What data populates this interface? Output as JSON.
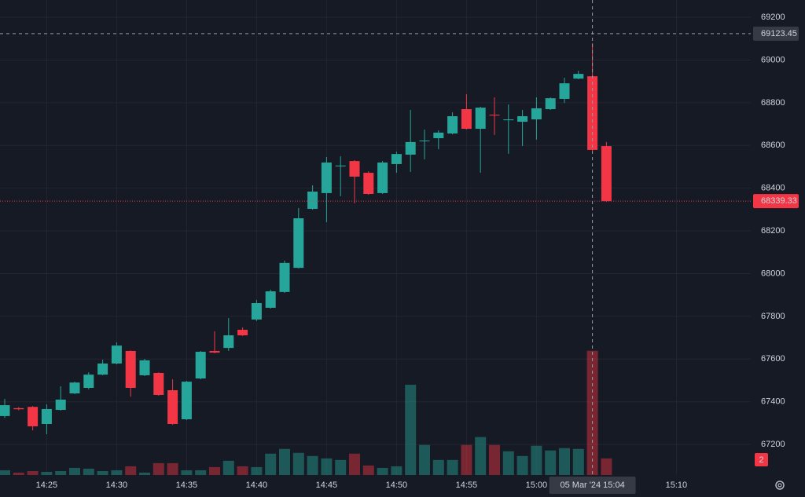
{
  "chart_data": {
    "type": "candlestick",
    "x": [
      "14:22",
      "14:23",
      "14:24",
      "14:25",
      "14:26",
      "14:27",
      "14:28",
      "14:29",
      "14:30",
      "14:31",
      "14:32",
      "14:33",
      "14:34",
      "14:35",
      "14:36",
      "14:37",
      "14:38",
      "14:39",
      "14:40",
      "14:41",
      "14:42",
      "14:43",
      "14:44",
      "14:45",
      "14:46",
      "14:47",
      "14:48",
      "14:49",
      "14:50",
      "14:51",
      "14:52",
      "14:53",
      "14:54",
      "14:55",
      "14:56",
      "14:57",
      "14:58",
      "14:59",
      "15:00",
      "15:01",
      "15:02",
      "15:03",
      "15:04",
      "15:05"
    ],
    "open": [
      67333,
      67370,
      67376,
      67296,
      67362,
      67439,
      67465,
      67527,
      67579,
      67638,
      67524,
      67535,
      67454,
      67318,
      67509,
      67638,
      67652,
      67737,
      67785,
      67840,
      67914,
      68027,
      68303,
      68377,
      68502,
      68527,
      68472,
      68377,
      68513,
      68557,
      68620,
      68634,
      68656,
      68770,
      68678,
      68744,
      68718,
      68711,
      68722,
      68770,
      68818,
      68913,
      68924,
      68597
    ],
    "high": [
      67413,
      67375,
      67380,
      67388,
      67472,
      67494,
      67538,
      67597,
      67678,
      67640,
      67601,
      67538,
      67505,
      67498,
      67638,
      67730,
      67792,
      67748,
      67877,
      67925,
      68061,
      68307,
      68413,
      68546,
      68549,
      68531,
      68479,
      68527,
      68571,
      68766,
      68674,
      68671,
      68755,
      68840,
      68781,
      68825,
      68792,
      68766,
      68825,
      68825,
      68917,
      68950,
      69079,
      68616
    ],
    "low": [
      67325,
      67360,
      67266,
      67248,
      67358,
      67436,
      67458,
      67524,
      67575,
      67424,
      67520,
      67428,
      67292,
      67314,
      67505,
      67627,
      67638,
      67708,
      67778,
      67836,
      67910,
      68024,
      68299,
      68241,
      68362,
      68329,
      68369,
      68373,
      68472,
      68476,
      68535,
      68582,
      68652,
      68674,
      68472,
      68649,
      68561,
      68597,
      68627,
      68766,
      68799,
      68910,
      68575,
      68336
    ],
    "close": [
      67384,
      67365,
      67285,
      67366,
      67410,
      67490,
      67527,
      67579,
      67663,
      67465,
      67594,
      67432,
      67296,
      67494,
      67634,
      67630,
      67711,
      67711,
      67862,
      67917,
      68050,
      68259,
      68384,
      68520,
      68506,
      68454,
      68373,
      68520,
      68560,
      68616,
      68623,
      68660,
      68737,
      68678,
      68777,
      68740,
      68722,
      68737,
      68774,
      68821,
      68891,
      68935,
      68579,
      68339.33
    ],
    "volume": [
      6,
      3,
      5,
      4,
      5,
      9,
      8,
      5,
      6,
      11,
      3,
      15,
      15,
      6,
      6,
      10,
      18,
      11,
      10,
      27,
      33,
      28,
      24,
      21,
      19,
      27,
      12,
      9,
      11,
      114,
      38,
      19,
      19,
      38,
      48,
      38,
      30,
      24,
      37,
      31,
      34,
      33,
      157,
      21
    ],
    "up_color": "#26a69a",
    "down_color": "#f23645",
    "ylim": [
      67057,
      69281
    ],
    "yticks": [
      67200,
      67400,
      67600,
      67800,
      68000,
      68200,
      68400,
      68600,
      68800,
      69000,
      69200
    ],
    "xticks": [
      "14:25",
      "14:30",
      "14:35",
      "14:40",
      "14:45",
      "14:50",
      "14:55",
      "15:00",
      "15:10"
    ],
    "volume_lim": [
      0,
      600
    ],
    "grid": true,
    "crosshair_price": 69123.45,
    "crosshair_time": "05 Mar '24 15:04",
    "crosshair_index": 42,
    "volume_scale_label": "2"
  }
}
